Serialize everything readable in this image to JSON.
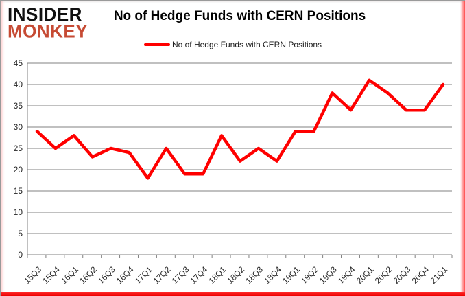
{
  "logo": {
    "line1": "INSIDER",
    "line2": "MONKEY",
    "line2_color": "#c64a33"
  },
  "header": {
    "title": "No of Hedge Funds with CERN Positions"
  },
  "legend": {
    "label": "No of Hedge Funds with CERN Positions",
    "line_color": "#ff0000"
  },
  "colors": {
    "series_line": "#ff0000",
    "gridline": "#808080",
    "axis": "#808080",
    "tick_label": "#262626",
    "frame_red": "#ff0000"
  },
  "chart_data": {
    "type": "line",
    "title": "No of Hedge Funds with CERN Positions",
    "categories": [
      "15Q3",
      "15Q4",
      "16Q1",
      "16Q2",
      "16Q3",
      "16Q4",
      "17Q1",
      "17Q2",
      "17Q3",
      "17Q4",
      "18Q1",
      "18Q2",
      "18Q3",
      "18Q4",
      "19Q1",
      "19Q2",
      "19Q3",
      "19Q4",
      "20Q1",
      "20Q2",
      "20Q3",
      "20Q4",
      "21Q1"
    ],
    "series": [
      {
        "name": "No of Hedge Funds with CERN Positions",
        "color": "#ff0000",
        "values": [
          29,
          25,
          28,
          23,
          25,
          24,
          18,
          25,
          19,
          19,
          28,
          22,
          25,
          22,
          29,
          29,
          38,
          34,
          41,
          38,
          34,
          34,
          40
        ]
      }
    ],
    "xlabel": "",
    "ylabel": "",
    "ylim": [
      0,
      45
    ],
    "yticks": [
      0,
      5,
      10,
      15,
      20,
      25,
      30,
      35,
      40,
      45
    ],
    "grid": true,
    "legend_position": "top"
  }
}
